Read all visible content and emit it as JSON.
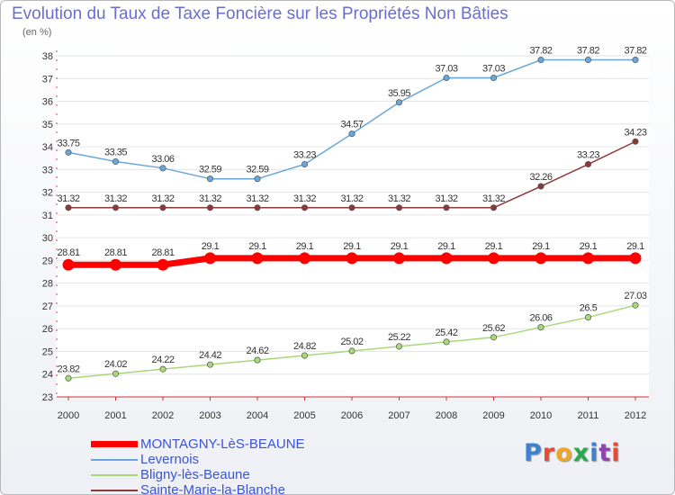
{
  "title": "Evolution du Taux de Taxe Foncière sur les Propriétés Non Bâties",
  "subtitle": "(en %)",
  "logo": {
    "text": "Proxiti",
    "colors": [
      "#3b83d1",
      "#e94b35",
      "#f2a623",
      "#2aa84a",
      "#3b83d1",
      "#8e44ad",
      "#e94b35"
    ]
  },
  "chart_data": {
    "type": "line",
    "title": "Evolution du Taux de Taxe Foncière sur les Propriétés Non Bâties",
    "ylabel": "(en %)",
    "x": [
      "2000",
      "2001",
      "2002",
      "2003",
      "2004",
      "2005",
      "2006",
      "2007",
      "2008",
      "2009",
      "2010",
      "2011",
      "2012"
    ],
    "ylim": [
      23,
      38
    ],
    "yticks": [
      "23",
      "24",
      "25",
      "26",
      "27",
      "28",
      "29",
      "30",
      "31",
      "32",
      "33",
      "34",
      "35",
      "36",
      "37",
      "38"
    ],
    "grid": true,
    "legend_position": "bottom-left",
    "series": [
      {
        "name": "MONTAGNY-LèS-BEAUNE",
        "color": "#ff0000",
        "values": [
          28.81,
          28.81,
          28.81,
          29.1,
          29.1,
          29.1,
          29.1,
          29.1,
          29.1,
          29.1,
          29.1,
          29.1,
          29.1
        ],
        "labels": [
          "28.81",
          "28.81",
          "28.81",
          "29.1",
          "29.1",
          "29.1",
          "29.1",
          "29.1",
          "29.1",
          "29.1",
          "29.1",
          "29.1",
          "29.1"
        ]
      },
      {
        "name": "Levernois",
        "color": "#6aa7d8",
        "values": [
          33.75,
          33.35,
          33.06,
          32.59,
          32.59,
          33.23,
          34.57,
          35.95,
          37.03,
          37.03,
          37.82,
          37.82,
          37.82
        ],
        "labels": [
          "33.75",
          "33.35",
          "33.06",
          "32.59",
          "32.59",
          "33.23",
          "34.57",
          "35.95",
          "37.03",
          "37.03",
          "37.82",
          "37.82",
          "37.82"
        ]
      },
      {
        "name": "Bligny-lès-Beaune",
        "color": "#a8d878",
        "values": [
          23.82,
          24.02,
          24.22,
          24.42,
          24.62,
          24.82,
          25.02,
          25.22,
          25.42,
          25.62,
          26.06,
          26.5,
          27.03
        ],
        "labels": [
          "23.82",
          "24.02",
          "24.22",
          "24.42",
          "24.62",
          "24.82",
          "25.02",
          "25.22",
          "25.42",
          "25.62",
          "26.06",
          "26.5",
          "27.03"
        ]
      },
      {
        "name": "Sainte-Marie-la-Blanche",
        "color": "#8b3a3a",
        "values": [
          31.32,
          31.32,
          31.32,
          31.32,
          31.32,
          31.32,
          31.32,
          31.32,
          31.32,
          31.32,
          32.26,
          33.23,
          34.23
        ],
        "labels": [
          "31.32",
          "31.32",
          "31.32",
          "31.32",
          "31.32",
          "31.32",
          "31.32",
          "31.32",
          "31.32",
          "31.32",
          "32.26",
          "33.23",
          "34.23"
        ]
      }
    ]
  }
}
